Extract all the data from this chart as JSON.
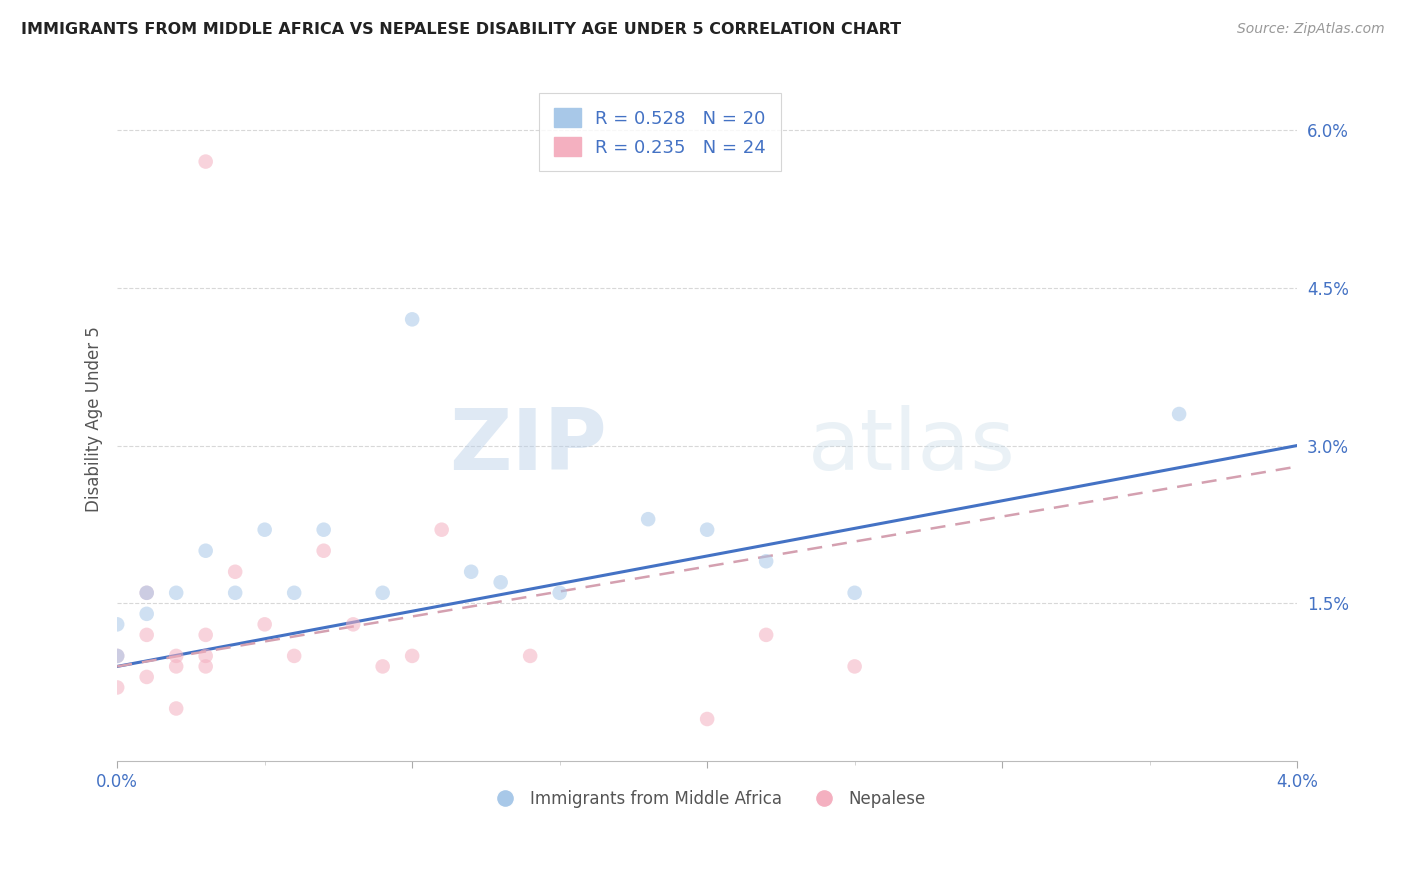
{
  "title": "IMMIGRANTS FROM MIDDLE AFRICA VS NEPALESE DISABILITY AGE UNDER 5 CORRELATION CHART",
  "source": "Source: ZipAtlas.com",
  "ylabel": "Disability Age Under 5",
  "xlim": [
    0.0,
    0.04
  ],
  "ylim": [
    0.0,
    0.065
  ],
  "xticks": [
    0.0,
    0.01,
    0.02,
    0.03,
    0.04
  ],
  "xticklabels": [
    "0.0%",
    "",
    "",
    "",
    "4.0%"
  ],
  "yticks": [
    0.0,
    0.015,
    0.03,
    0.045,
    0.06
  ],
  "yticklabels": [
    "",
    "1.5%",
    "3.0%",
    "4.5%",
    "6.0%"
  ],
  "watermark_zip": "ZIP",
  "watermark_atlas": "atlas",
  "legend_label1": "R = 0.528   N = 20",
  "legend_label2": "R = 0.235   N = 24",
  "legend_bottom_label1": "Immigrants from Middle Africa",
  "legend_bottom_label2": "Nepalese",
  "color_blue": "#a8c8e8",
  "color_pink": "#f4b0c0",
  "line_color_blue": "#4472c4",
  "line_color_pink": "#d4a0b0",
  "text_color": "#4472c4",
  "title_color": "#222222",
  "blue_points_x": [
    0.0,
    0.0,
    0.001,
    0.001,
    0.002,
    0.003,
    0.004,
    0.005,
    0.006,
    0.007,
    0.009,
    0.01,
    0.012,
    0.013,
    0.015,
    0.018,
    0.02,
    0.022,
    0.025,
    0.036
  ],
  "blue_points_y": [
    0.01,
    0.013,
    0.014,
    0.016,
    0.016,
    0.02,
    0.016,
    0.022,
    0.016,
    0.022,
    0.016,
    0.042,
    0.018,
    0.017,
    0.016,
    0.023,
    0.022,
    0.019,
    0.016,
    0.033
  ],
  "pink_points_x": [
    0.0,
    0.0,
    0.001,
    0.001,
    0.001,
    0.002,
    0.002,
    0.002,
    0.003,
    0.003,
    0.003,
    0.003,
    0.004,
    0.005,
    0.006,
    0.007,
    0.008,
    0.009,
    0.01,
    0.011,
    0.014,
    0.02,
    0.022,
    0.025
  ],
  "pink_points_y": [
    0.01,
    0.007,
    0.016,
    0.012,
    0.008,
    0.01,
    0.009,
    0.005,
    0.012,
    0.01,
    0.009,
    0.057,
    0.018,
    0.013,
    0.01,
    0.02,
    0.013,
    0.009,
    0.01,
    0.022,
    0.01,
    0.004,
    0.012,
    0.009
  ],
  "blue_line_x": [
    0.0,
    0.04
  ],
  "blue_line_y": [
    0.009,
    0.03
  ],
  "pink_line_x": [
    0.0,
    0.04
  ],
  "pink_line_y": [
    0.009,
    0.028
  ],
  "grid_color": "#d8d8d8",
  "bg_color": "#ffffff",
  "marker_size": 110,
  "marker_alpha": 0.55
}
